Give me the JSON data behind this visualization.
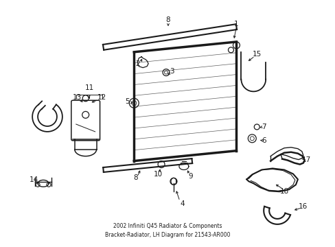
{
  "title": "2002 Infiniti Q45 Radiator & Components\nBracket-Radiator, LH Diagram for 21543-AR000",
  "bg_color": "#ffffff",
  "line_color": "#1a1a1a",
  "text_color": "#1a1a1a",
  "fig_width": 4.89,
  "fig_height": 3.6,
  "dpi": 100
}
